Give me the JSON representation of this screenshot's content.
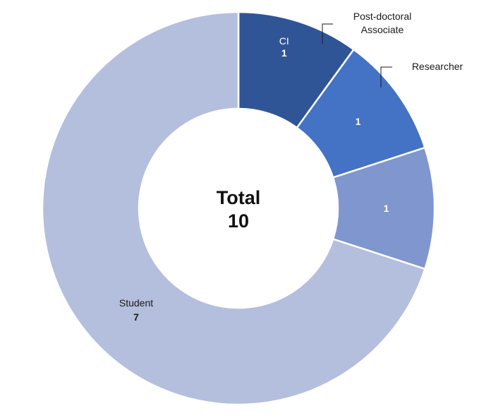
{
  "chart_data": {
    "type": "pie",
    "donut": true,
    "center_label": {
      "title": "Total",
      "value": "10"
    },
    "slices": [
      {
        "label": "CI",
        "value": 1,
        "color": "#2f5597"
      },
      {
        "label": "Post-doctoral Associate",
        "label_lines": [
          "Post-doctoral",
          "Associate"
        ],
        "value": 1,
        "color": "#4472c4"
      },
      {
        "label": "Researcher",
        "value": 1,
        "color": "#7f96cf"
      },
      {
        "label": "Student",
        "value": 7,
        "color": "#b4bfde"
      }
    ]
  }
}
